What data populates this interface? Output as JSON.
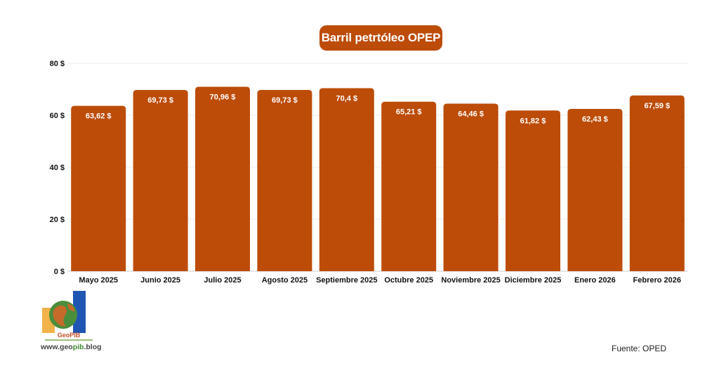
{
  "chart_data": {
    "type": "bar",
    "title": "Barril petrtóleo OPEP",
    "categories": [
      "Mayo 2025",
      "Junio 2025",
      "Julio 2025",
      "Agosto 2025",
      "Septiembre 2025",
      "Octubre 2025",
      "Noviembre 2025",
      "Diciembre 2025",
      "Enero 2026",
      "Febrero 2026"
    ],
    "values": [
      63.62,
      69.73,
      70.96,
      69.73,
      70.4,
      65.21,
      64.46,
      61.82,
      62.43,
      67.59
    ],
    "value_labels": [
      "63,62 $",
      "69,73 $",
      "70,96 $",
      "69,73 $",
      "70,4 $",
      "65,21 $",
      "64,46 $",
      "61,82 $",
      "62,43 $",
      "67,59 $"
    ],
    "y_ticks": [
      0,
      20,
      40,
      60,
      80
    ],
    "y_tick_labels": [
      "0 $",
      "20 $",
      "40 $",
      "60 $",
      "80 $"
    ],
    "ylim": [
      0,
      80
    ],
    "grid": true,
    "legend": "none",
    "bar_color": "#bc4c08"
  },
  "logo": {
    "name": "GeoPIB",
    "url_prefix": "www.geo",
    "url_highlight": "pib",
    "url_suffix": ".blog"
  },
  "source": "Fuente: OPED"
}
